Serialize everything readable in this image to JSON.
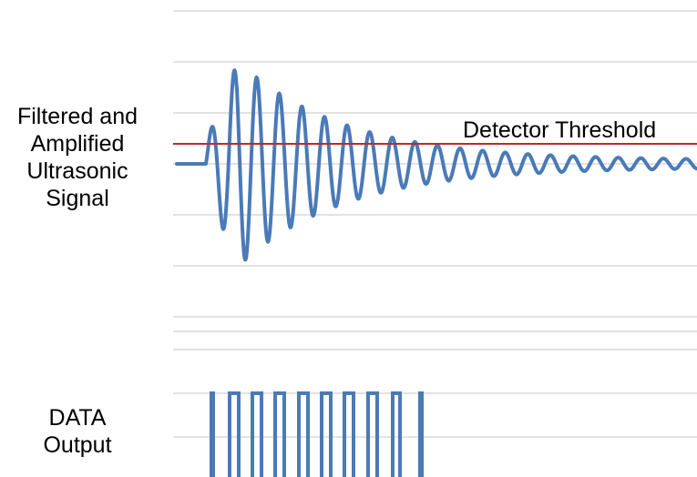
{
  "signal_label": "Filtered and\nAmplified\nUltrasonic\nSignal",
  "data_label": "DATA\nOutput",
  "threshold_label": "Detector Threshold",
  "colors": {
    "gridline": "#d9d9d9",
    "signal": "#4a7ab8",
    "threshold": "#c0282d",
    "data_output": "#4a7ab8"
  }
}
